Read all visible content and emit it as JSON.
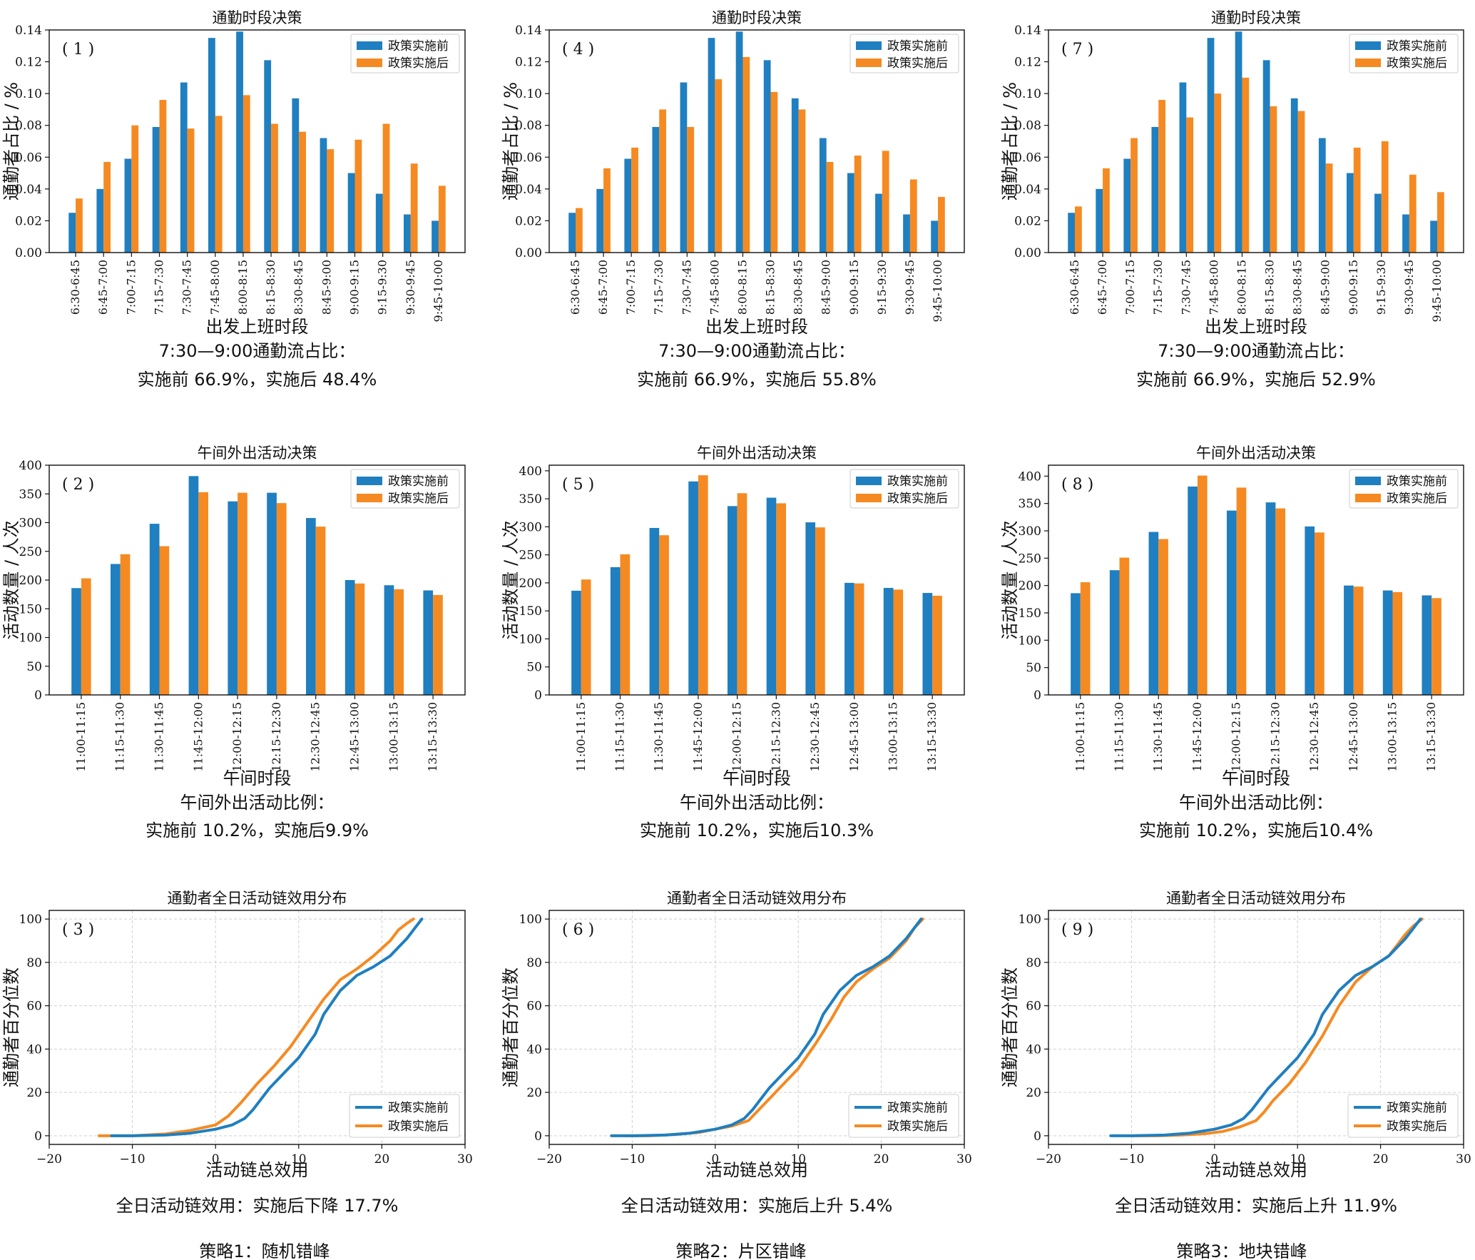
{
  "chart_data": [
    {
      "id": "p1",
      "type": "bar",
      "title": "通勤时段决策",
      "panel_label": "( 1 )",
      "xlabel": "出发上班时段",
      "ylabel": "通勤者占比 / %",
      "ylim": [
        0,
        0.14
      ],
      "yticks": [
        "0.00",
        "0.02",
        "0.04",
        "0.06",
        "0.08",
        "0.10",
        "0.12",
        "0.14"
      ],
      "categories": [
        "6:30-6:45",
        "6:45-7:00",
        "7:00-7:15",
        "7:15-7:30",
        "7:30-7:45",
        "7:45-8:00",
        "8:00-8:15",
        "8:15-8:30",
        "8:30-8:45",
        "8:45-9:00",
        "9:00-9:15",
        "9:15-9:30",
        "9:30-9:45",
        "9:45-10:00"
      ],
      "series": [
        {
          "name": "政策实施前",
          "values": [
            0.025,
            0.04,
            0.059,
            0.079,
            0.107,
            0.135,
            0.139,
            0.121,
            0.097,
            0.072,
            0.05,
            0.037,
            0.024,
            0.02
          ]
        },
        {
          "name": "政策实施后",
          "values": [
            0.034,
            0.057,
            0.08,
            0.096,
            0.078,
            0.086,
            0.099,
            0.081,
            0.076,
            0.065,
            0.071,
            0.081,
            0.056,
            0.042
          ]
        }
      ],
      "legend": "top-right",
      "caption": [
        "7:30—9:00通勤流占比：",
        "实施前 66.9%，实施后 48.4%"
      ]
    },
    {
      "id": "p4",
      "type": "bar",
      "title": "通勤时段决策",
      "panel_label": "( 4 )",
      "xlabel": "出发上班时段",
      "ylabel": "通勤者占比 / %",
      "ylim": [
        0,
        0.14
      ],
      "yticks": [
        "0.00",
        "0.02",
        "0.04",
        "0.06",
        "0.08",
        "0.10",
        "0.12",
        "0.14"
      ],
      "categories": [
        "6:30-6:45",
        "6:45-7:00",
        "7:00-7:15",
        "7:15-7:30",
        "7:30-7:45",
        "7:45-8:00",
        "8:00-8:15",
        "8:15-8:30",
        "8:30-8:45",
        "8:45-9:00",
        "9:00-9:15",
        "9:15-9:30",
        "9:30-9:45",
        "9:45-10:00"
      ],
      "series": [
        {
          "name": "政策实施前",
          "values": [
            0.025,
            0.04,
            0.059,
            0.079,
            0.107,
            0.135,
            0.139,
            0.121,
            0.097,
            0.072,
            0.05,
            0.037,
            0.024,
            0.02
          ]
        },
        {
          "name": "政策实施后",
          "values": [
            0.028,
            0.053,
            0.066,
            0.09,
            0.079,
            0.109,
            0.123,
            0.101,
            0.09,
            0.057,
            0.061,
            0.064,
            0.046,
            0.035
          ]
        }
      ],
      "legend": "top-right",
      "caption": [
        "7:30—9:00通勤流占比：",
        "实施前 66.9%，实施后 55.8%"
      ]
    },
    {
      "id": "p7",
      "type": "bar",
      "title": "通勤时段决策",
      "panel_label": "( 7 )",
      "xlabel": "出发上班时段",
      "ylabel": "通勤者占比 / %",
      "ylim": [
        0,
        0.14
      ],
      "yticks": [
        "0.00",
        "0.02",
        "0.04",
        "0.06",
        "0.08",
        "0.10",
        "0.12",
        "0.14"
      ],
      "categories": [
        "6:30-6:45",
        "6:45-7:00",
        "7:00-7:15",
        "7:15-7:30",
        "7:30-7:45",
        "7:45-8:00",
        "8:00-8:15",
        "8:15-8:30",
        "8:30-8:45",
        "8:45-9:00",
        "9:00-9:15",
        "9:15-9:30",
        "9:30-9:45",
        "9:45-10:00"
      ],
      "series": [
        {
          "name": "政策实施前",
          "values": [
            0.025,
            0.04,
            0.059,
            0.079,
            0.107,
            0.135,
            0.139,
            0.121,
            0.097,
            0.072,
            0.05,
            0.037,
            0.024,
            0.02
          ]
        },
        {
          "name": "政策实施后",
          "values": [
            0.029,
            0.053,
            0.072,
            0.096,
            0.085,
            0.1,
            0.11,
            0.092,
            0.089,
            0.056,
            0.066,
            0.07,
            0.049,
            0.038
          ]
        }
      ],
      "legend": "top-right",
      "caption": [
        "7:30—9:00通勤流占比：",
        "实施前 66.9%，实施后 52.9%"
      ]
    },
    {
      "id": "p2",
      "type": "bar",
      "title": "午间外出活动决策",
      "panel_label": "( 2 )",
      "xlabel": "午间时段",
      "ylabel": "活动数量 / 人次",
      "ylim": [
        0,
        400
      ],
      "yticks": [
        "0",
        "50",
        "100",
        "150",
        "200",
        "250",
        "300",
        "350",
        "400"
      ],
      "categories": [
        "11:00-11:15",
        "11:15-11:30",
        "11:30-11:45",
        "11:45-12:00",
        "12:00-12:15",
        "12:15-12:30",
        "12:30-12:45",
        "12:45-13:00",
        "13:00-13:15",
        "13:15-13:30"
      ],
      "series": [
        {
          "name": "政策实施前",
          "values": [
            186,
            228,
            298,
            381,
            337,
            352,
            308,
            200,
            191,
            182
          ]
        },
        {
          "name": "政策实施后",
          "values": [
            203,
            245,
            259,
            353,
            352,
            334,
            293,
            194,
            184,
            174
          ]
        }
      ],
      "legend": "top-right",
      "caption": [
        "午间外出活动比例：",
        "实施前 10.2%，实施后9.9%"
      ]
    },
    {
      "id": "p5",
      "type": "bar",
      "title": "午间外出活动决策",
      "panel_label": "( 5 )",
      "xlabel": "午间时段",
      "ylabel": "活动数量 / 人次",
      "ylim": [
        0,
        410
      ],
      "yticks": [
        "0",
        "50",
        "100",
        "150",
        "200",
        "250",
        "300",
        "350",
        "400"
      ],
      "categories": [
        "11:00-11:15",
        "11:15-11:30",
        "11:30-11:45",
        "11:45-12:00",
        "12:00-12:15",
        "12:15-12:30",
        "12:30-12:45",
        "12:45-13:00",
        "13:00-13:15",
        "13:15-13:30"
      ],
      "series": [
        {
          "name": "政策实施前",
          "values": [
            186,
            228,
            298,
            381,
            337,
            352,
            308,
            200,
            191,
            182
          ]
        },
        {
          "name": "政策实施后",
          "values": [
            206,
            251,
            285,
            392,
            360,
            342,
            299,
            199,
            188,
            177
          ]
        }
      ],
      "legend": "top-right",
      "caption": [
        "午间外出活动比例：",
        "实施前 10.2%，实施后10.3%"
      ]
    },
    {
      "id": "p8",
      "type": "bar",
      "title": "午间外出活动决策",
      "panel_label": "( 8 )",
      "xlabel": "午间时段",
      "ylabel": "活动数量 / 人次",
      "ylim": [
        0,
        420
      ],
      "yticks": [
        "0",
        "50",
        "100",
        "150",
        "200",
        "250",
        "300",
        "350",
        "400"
      ],
      "categories": [
        "11:00-11:15",
        "11:15-11:30",
        "11:30-11:45",
        "11:45-12:00",
        "12:00-12:15",
        "12:15-12:30",
        "12:30-12:45",
        "12:45-13:00",
        "13:00-13:15",
        "13:15-13:30"
      ],
      "series": [
        {
          "name": "政策实施前",
          "values": [
            186,
            228,
            298,
            381,
            337,
            352,
            308,
            200,
            191,
            182
          ]
        },
        {
          "name": "政策实施后",
          "values": [
            206,
            251,
            285,
            401,
            379,
            341,
            297,
            198,
            188,
            177
          ]
        }
      ],
      "legend": "top-right",
      "caption": [
        "午间外出活动比例：",
        "实施前 10.2%，实施后10.4%"
      ]
    },
    {
      "id": "p3",
      "type": "line",
      "title": "通勤者全日活动链效用分布",
      "panel_label": "( 3 )",
      "xlabel": "活动链总效用",
      "ylabel": "通勤者百分位数",
      "xlim": [
        -20,
        30
      ],
      "ylim": [
        -4,
        104
      ],
      "xticks": [
        "−20",
        "−10",
        "0",
        "10",
        "20",
        "30"
      ],
      "yticks": [
        "0",
        "20",
        "40",
        "60",
        "80",
        "100"
      ],
      "grid": true,
      "series": [
        {
          "name": "政策实施前",
          "x": [
            -12.5,
            -10,
            -6,
            -3,
            0,
            2,
            3.5,
            4.5,
            5.5,
            6.5,
            8,
            10,
            12,
            13,
            15,
            17,
            19,
            21,
            22,
            23,
            24,
            24.8
          ],
          "y": [
            0,
            0,
            0.3,
            1.2,
            3,
            5,
            8,
            12,
            17,
            22,
            28,
            36,
            47,
            56,
            67,
            74,
            78,
            83,
            87,
            91,
            96,
            100
          ]
        },
        {
          "name": "政策实施后",
          "x": [
            -14,
            -10,
            -6,
            -3,
            0,
            1.5,
            3,
            5,
            7,
            9,
            11,
            13,
            15,
            17,
            19,
            21,
            22,
            23,
            23.8
          ],
          "y": [
            0,
            0,
            0.8,
            2.5,
            5,
            9,
            15,
            24,
            32,
            41,
            52,
            63,
            72,
            77,
            83,
            90,
            95,
            98,
            100
          ]
        }
      ],
      "legend": "bottom-right",
      "caption": [
        "全日活动链效用：实施后下降 17.7%"
      ]
    },
    {
      "id": "p6",
      "type": "line",
      "title": "通勤者全日活动链效用分布",
      "panel_label": "( 6 )",
      "xlabel": "活动链总效用",
      "ylabel": "通勤者百分位数",
      "xlim": [
        -20,
        30
      ],
      "ylim": [
        -4,
        104
      ],
      "xticks": [
        "−20",
        "−10",
        "0",
        "10",
        "20",
        "30"
      ],
      "yticks": [
        "0",
        "20",
        "40",
        "60",
        "80",
        "100"
      ],
      "grid": true,
      "series": [
        {
          "name": "政策实施前",
          "x": [
            -12.5,
            -10,
            -6,
            -3,
            0,
            2,
            3.5,
            4.5,
            5.5,
            6.5,
            8,
            10,
            12,
            13,
            15,
            17,
            19,
            21,
            22,
            23,
            24,
            24.8
          ],
          "y": [
            0,
            0,
            0.3,
            1.2,
            3,
            5,
            8,
            12,
            17,
            22,
            28,
            36,
            47,
            56,
            67,
            74,
            78,
            83,
            87,
            91,
            96,
            100
          ]
        },
        {
          "name": "政策实施后",
          "x": [
            -11,
            -8,
            -5,
            -2,
            0,
            2,
            4,
            5,
            6.5,
            8,
            10,
            12,
            14,
            15.5,
            17,
            19,
            21,
            22,
            23,
            24,
            25
          ],
          "y": [
            0,
            0,
            0.5,
            1.5,
            3,
            4.5,
            7,
            11,
            17,
            23,
            31,
            42,
            54,
            64,
            71,
            77,
            82,
            86,
            90,
            96,
            100
          ]
        }
      ],
      "legend": "bottom-right",
      "caption": [
        "全日活动链效用：实施后上升 5.4%"
      ]
    },
    {
      "id": "p9",
      "type": "line",
      "title": "通勤者全日活动链效用分布",
      "panel_label": "( 9 )",
      "xlabel": "活动链总效用",
      "ylabel": "通勤者百分位数",
      "xlim": [
        -20,
        30
      ],
      "ylim": [
        -4,
        104
      ],
      "xticks": [
        "−20",
        "−10",
        "0",
        "10",
        "20",
        "30"
      ],
      "yticks": [
        "0",
        "20",
        "40",
        "60",
        "80",
        "100"
      ],
      "grid": true,
      "series": [
        {
          "name": "政策实施前",
          "x": [
            -12.5,
            -10,
            -6,
            -3,
            0,
            2,
            3.5,
            4.5,
            5.5,
            6.5,
            8,
            10,
            12,
            13,
            15,
            17,
            19,
            21,
            22,
            23,
            24,
            24.8
          ],
          "y": [
            0,
            0,
            0.3,
            1.2,
            3,
            5,
            8,
            12,
            17,
            22,
            28,
            36,
            47,
            56,
            67,
            74,
            78,
            83,
            87,
            91,
            96,
            100
          ]
        },
        {
          "name": "政策实施后",
          "x": [
            -10,
            -7,
            -4,
            -1,
            1,
            3,
            5,
            6,
            7,
            9,
            11,
            13,
            15,
            17,
            19,
            21,
            22,
            23,
            24,
            25
          ],
          "y": [
            0,
            0,
            0.3,
            1,
            2,
            4,
            7,
            11,
            16,
            24,
            34,
            46,
            60,
            71,
            78,
            83,
            88,
            93,
            97,
            100
          ]
        }
      ],
      "legend": "bottom-right",
      "caption": [
        "全日活动链效用：实施后上升 11.9%"
      ]
    }
  ],
  "strategy_labels": [
    "策略1：随机错峰",
    "策略2：片区错峰",
    "策略3：地块错峰"
  ],
  "colors": {
    "before": "#1f7fc0",
    "after": "#f58a22",
    "grid": "#d0d0d0"
  }
}
